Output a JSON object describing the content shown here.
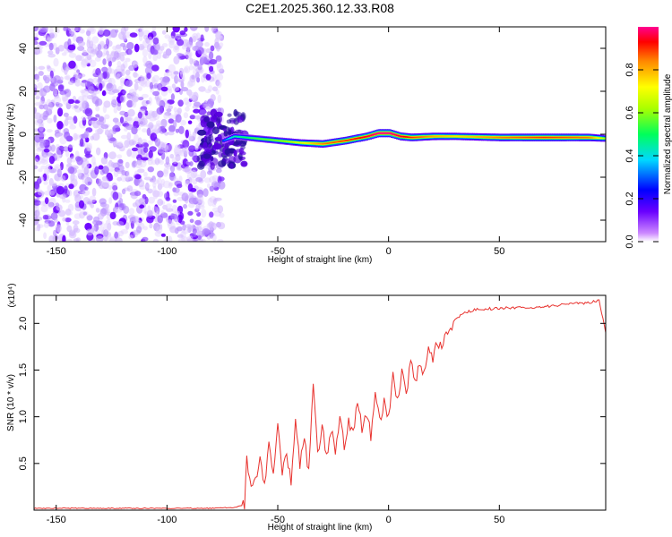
{
  "title": "C2E1.2025.360.12.33.R08",
  "colors": {
    "background": "#ffffff",
    "snr_line": "#e8322e",
    "axis": "#000000"
  },
  "chart_data": [
    {
      "type": "heatmap",
      "name": "spectrogram",
      "title": "C2E1.2025.360.12.33.R08",
      "xlabel": "Height of straight line (km)",
      "ylabel": "Frequency (Hz)",
      "xlim": [
        -160,
        98
      ],
      "ylim": [
        -50,
        50
      ],
      "xticks": [
        -150,
        -100,
        -50,
        0,
        50
      ],
      "xticklabels": [
        "-150",
        "-100",
        "-50",
        "0",
        "50"
      ],
      "yticks": [
        -40,
        -20,
        0,
        20,
        40
      ],
      "yticklabels": [
        "-40",
        "-20",
        "0",
        "20",
        "40"
      ],
      "noise_region_x": [
        -160,
        -75
      ],
      "ridge": {
        "description_values": "frequency of spectral peak vs height",
        "x": [
          -75,
          -70,
          -60,
          -50,
          -40,
          -30,
          -20,
          -10,
          -5,
          0,
          5,
          10,
          20,
          30,
          50,
          70,
          90,
          98
        ],
        "frequency": [
          -3,
          -1,
          -2,
          -3,
          -4,
          -4.5,
          -3,
          -1,
          0.5,
          0.5,
          -1,
          -1.5,
          -1,
          -1,
          -1.5,
          -1.5,
          -1.5,
          -2
        ],
        "amplitude": [
          0.3,
          0.45,
          0.55,
          0.6,
          0.7,
          0.85,
          0.9,
          0.95,
          1.0,
          1.0,
          0.95,
          0.9,
          0.8,
          0.75,
          0.85,
          0.9,
          0.85,
          0.6
        ]
      },
      "colorbar": {
        "label": "Normalized spectral amplitude",
        "range": [
          0,
          1
        ],
        "ticks": [
          0.0,
          0.2,
          0.4,
          0.6,
          0.8
        ],
        "ticklabels": [
          "0.0",
          "0.2",
          "0.4",
          "0.6",
          "0.8"
        ]
      }
    },
    {
      "type": "line",
      "name": "snr",
      "xlabel": "Height of straight line (km)",
      "ylabel": "SNR (10 * v/v)",
      "multiplier": "(x10⁴)",
      "xlim": [
        -160,
        98
      ],
      "ylim": [
        0,
        2.3
      ],
      "xticks": [
        -150,
        -100,
        -50,
        0,
        50
      ],
      "xticklabels": [
        "-150",
        "-100",
        "-50",
        "0",
        "50"
      ],
      "yticks": [
        0.5,
        1.0,
        1.5,
        2.0
      ],
      "yticklabels": [
        "0.5",
        "1.0",
        "1.5",
        "2.0"
      ],
      "series": [
        {
          "name": "SNR",
          "x": [
            -160,
            -140,
            -120,
            -100,
            -80,
            -70,
            -65,
            -64,
            -62,
            -60,
            -58,
            -56,
            -54,
            -52,
            -50,
            -48,
            -46,
            -44,
            -42,
            -40,
            -38,
            -36,
            -34,
            -32,
            -30,
            -28,
            -26,
            -24,
            -22,
            -20,
            -18,
            -16,
            -14,
            -12,
            -10,
            -8,
            -6,
            -4,
            -2,
            0,
            2,
            4,
            6,
            8,
            10,
            12,
            14,
            16,
            18,
            20,
            22,
            24,
            26,
            28,
            30,
            35,
            40,
            50,
            60,
            70,
            80,
            90,
            95,
            98
          ],
          "y": [
            0.02,
            0.02,
            0.02,
            0.02,
            0.02,
            0.03,
            0.05,
            0.55,
            0.2,
            0.3,
            0.6,
            0.25,
            0.7,
            0.35,
            0.9,
            0.4,
            0.6,
            0.3,
            0.95,
            0.5,
            0.75,
            0.4,
            1.35,
            0.6,
            0.9,
            0.55,
            0.85,
            0.65,
            1.0,
            0.7,
            0.95,
            0.8,
            1.2,
            0.85,
            1.05,
            0.8,
            1.25,
            0.95,
            1.15,
            1.0,
            1.45,
            1.15,
            1.5,
            1.2,
            1.6,
            1.35,
            1.55,
            1.45,
            1.7,
            1.6,
            1.8,
            1.75,
            1.9,
            1.95,
            2.05,
            2.12,
            2.15,
            2.16,
            2.17,
            2.18,
            2.2,
            2.22,
            2.25,
            1.9
          ]
        }
      ]
    }
  ]
}
